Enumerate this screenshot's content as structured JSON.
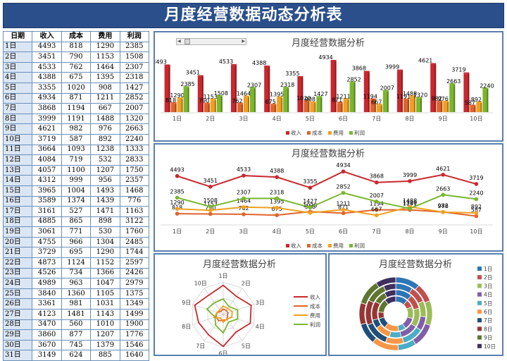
{
  "header": {
    "title": "月度经营数据动态分析表"
  },
  "table": {
    "columns": [
      "日期",
      "收入",
      "成本",
      "费用",
      "利润"
    ],
    "rows": [
      [
        "1日",
        "4493",
        "818",
        "1290",
        "2385"
      ],
      [
        "2日",
        "3451",
        "790",
        "1153",
        "1508"
      ],
      [
        "3日",
        "4533",
        "762",
        "1464",
        "2307"
      ],
      [
        "4日",
        "4388",
        "675",
        "1395",
        "2318"
      ],
      [
        "5日",
        "3355",
        "1020",
        "908",
        "1427"
      ],
      [
        "6日",
        "4934",
        "871",
        "1211",
        "2852"
      ],
      [
        "7日",
        "3868",
        "1194",
        "667",
        "2007"
      ],
      [
        "8日",
        "3999",
        "1191",
        "1488",
        "1320"
      ],
      [
        "9日",
        "4621",
        "982",
        "976",
        "2663"
      ],
      [
        "10日",
        "3719",
        "587",
        "892",
        "2240"
      ],
      [
        "11日",
        "3664",
        "1093",
        "1238",
        "1333"
      ],
      [
        "12日",
        "4084",
        "719",
        "532",
        "2833"
      ],
      [
        "13日",
        "4057",
        "1100",
        "1207",
        "1750"
      ],
      [
        "14日",
        "4312",
        "999",
        "956",
        "2357"
      ],
      [
        "15日",
        "3965",
        "1004",
        "1493",
        "1468"
      ],
      [
        "16日",
        "3589",
        "1374",
        "1439",
        "776"
      ],
      [
        "17日",
        "3161",
        "527",
        "1471",
        "1163"
      ],
      [
        "18日",
        "4885",
        "865",
        "898",
        "3122"
      ],
      [
        "19日",
        "3061",
        "771",
        "530",
        "1760"
      ],
      [
        "20日",
        "4755",
        "966",
        "1304",
        "2485"
      ],
      [
        "21日",
        "3729",
        "695",
        "1290",
        "1744"
      ],
      [
        "22日",
        "4873",
        "1124",
        "1152",
        "2597"
      ],
      [
        "23日",
        "4526",
        "734",
        "1366",
        "2426"
      ],
      [
        "24日",
        "4989",
        "963",
        "1047",
        "2979"
      ],
      [
        "25日",
        "3840",
        "1360",
        "1105",
        "1375"
      ],
      [
        "26日",
        "3361",
        "981",
        "1031",
        "1349"
      ],
      [
        "27日",
        "4123",
        "1481",
        "1143",
        "1499"
      ],
      [
        "28日",
        "3470",
        "560",
        "1010",
        "1900"
      ],
      [
        "29日",
        "3860",
        "877",
        "1207",
        "1776"
      ],
      [
        "30日",
        "3670",
        "745",
        "1379",
        "1546"
      ],
      [
        "31日",
        "3149",
        "624",
        "885",
        "1640"
      ]
    ]
  },
  "colors": {
    "revenue": "#c8282e",
    "cost": "#e0642b",
    "expense": "#f0a020",
    "profit": "#7ab62e",
    "header": "#2b4f8a",
    "border": "#5a7fb0"
  },
  "chart_data": [
    {
      "type": "bar",
      "title": "月度经营数据分析",
      "categories": [
        "1日",
        "2日",
        "3日",
        "4日",
        "5日",
        "6日",
        "7日",
        "8日",
        "9日",
        "10日"
      ],
      "series": [
        {
          "name": "收入",
          "values": [
            4493,
            3451,
            4533,
            4388,
            3355,
            4934,
            3868,
            3999,
            4621,
            3719
          ]
        },
        {
          "name": "成本",
          "values": [
            818,
            790,
            762,
            675,
            1020,
            871,
            1194,
            1191,
            982,
            587
          ]
        },
        {
          "name": "费用",
          "values": [
            1290,
            1153,
            1464,
            1395,
            908,
            1211,
            667,
            1488,
            976,
            892
          ]
        },
        {
          "name": "利润",
          "values": [
            2385,
            1508,
            2307,
            2318,
            1427,
            2852,
            2007,
            1320,
            2663,
            2240
          ]
        }
      ],
      "legend": "bottom"
    },
    {
      "type": "line",
      "title": "月度经营数据分析",
      "categories": [
        "1日",
        "2日",
        "3日",
        "4日",
        "5日",
        "6日",
        "7日",
        "8日",
        "9日",
        "10日"
      ],
      "series": [
        {
          "name": "收入",
          "values": [
            4493,
            3451,
            4533,
            4388,
            3355,
            4934,
            3868,
            3999,
            4621,
            3719
          ]
        },
        {
          "name": "成本",
          "values": [
            818,
            790,
            762,
            675,
            1020,
            871,
            1194,
            1191,
            982,
            587
          ]
        },
        {
          "name": "费用",
          "values": [
            1290,
            1153,
            1464,
            1395,
            908,
            1211,
            667,
            1488,
            976,
            892
          ]
        },
        {
          "name": "利润",
          "values": [
            2385,
            1508,
            2307,
            2318,
            1427,
            2852,
            2007,
            1320,
            2663,
            2240
          ]
        }
      ],
      "legend": "bottom"
    },
    {
      "type": "radar",
      "title": "月度经营数据分析",
      "categories": [
        "1日",
        "2日",
        "3日",
        "4日",
        "5日",
        "6日",
        "7日",
        "8日",
        "9日",
        "10日"
      ],
      "series": [
        {
          "name": "收入",
          "values": [
            4493,
            3451,
            4533,
            4388,
            3355,
            4934,
            3868,
            3999,
            4621,
            3719
          ]
        },
        {
          "name": "成本",
          "values": [
            818,
            790,
            762,
            675,
            1020,
            871,
            1194,
            1191,
            982,
            587
          ]
        },
        {
          "name": "费用",
          "values": [
            1290,
            1153,
            1464,
            1395,
            908,
            1211,
            667,
            1488,
            976,
            892
          ]
        },
        {
          "name": "利润",
          "values": [
            2385,
            1508,
            2307,
            2318,
            1427,
            2852,
            2007,
            1320,
            2663,
            2240
          ]
        }
      ],
      "legend": "right"
    },
    {
      "type": "doughnut",
      "title": "月度经营数据分析",
      "categories": [
        "1日",
        "2日",
        "3日",
        "4日",
        "5日",
        "6日",
        "7日",
        "8日",
        "9日",
        "10日"
      ],
      "series": [
        {
          "name": "收入",
          "values": [
            4493,
            3451,
            4533,
            4388,
            3355,
            4934,
            3868,
            3999,
            4621,
            3719
          ]
        },
        {
          "name": "成本",
          "values": [
            818,
            790,
            762,
            675,
            1020,
            871,
            1194,
            1191,
            982,
            587
          ]
        },
        {
          "name": "费用",
          "values": [
            1290,
            1153,
            1464,
            1395,
            908,
            1211,
            667,
            1488,
            976,
            892
          ]
        },
        {
          "name": "利润",
          "values": [
            2385,
            1508,
            2307,
            2318,
            1427,
            2852,
            2007,
            1320,
            2663,
            2240
          ]
        }
      ],
      "slice_colors": [
        "#2e75b6",
        "#c0504d",
        "#9bbb59",
        "#7f5fa6",
        "#4bacc6",
        "#f79646",
        "#1f4e79",
        "#943634",
        "#5f7530",
        "#3f2f60"
      ],
      "legend": "right"
    }
  ]
}
